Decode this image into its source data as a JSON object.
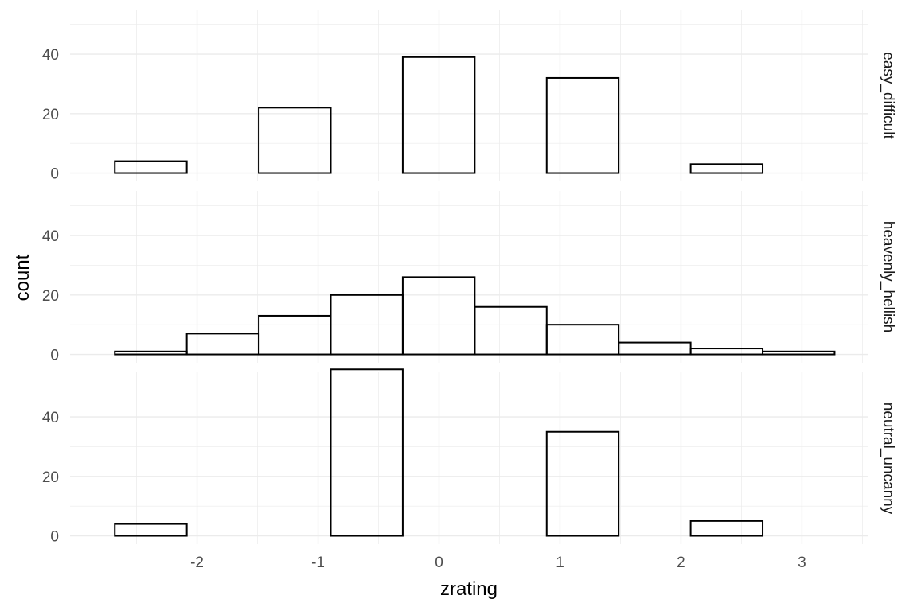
{
  "chart_data": {
    "type": "bar",
    "subtype": "faceted-histogram",
    "xlabel": "zrating",
    "ylabel": "count",
    "xlim": [
      -3.05,
      3.55
    ],
    "ylim": [
      -2.8,
      55
    ],
    "x_ticks": [
      -2,
      -1,
      0,
      1,
      2,
      3
    ],
    "x_tick_labels": [
      "-2",
      "-1",
      "0",
      "1",
      "2",
      "3"
    ],
    "y_ticks": [
      0,
      20,
      40
    ],
    "y_tick_labels": [
      "0",
      "20",
      "40"
    ],
    "bin_edges": [
      -2.68,
      -2.085,
      -1.49,
      -0.895,
      -0.3,
      0.295,
      0.89,
      1.485,
      2.08,
      2.675,
      3.27
    ],
    "grid": true,
    "fill": "none",
    "outline_color": "#000000",
    "grid_color": "#ebebeb",
    "facets": [
      {
        "name": "easy_difficult",
        "counts": [
          4,
          0,
          22,
          0,
          39,
          0,
          32,
          0,
          3,
          0
        ]
      },
      {
        "name": "heavenly_hellish",
        "counts": [
          1,
          7,
          13,
          20,
          26,
          16,
          10,
          4,
          2,
          1
        ]
      },
      {
        "name": "neutral_uncanny",
        "counts": [
          4,
          0,
          0,
          56,
          0,
          0,
          35,
          0,
          5,
          0
        ]
      }
    ]
  }
}
